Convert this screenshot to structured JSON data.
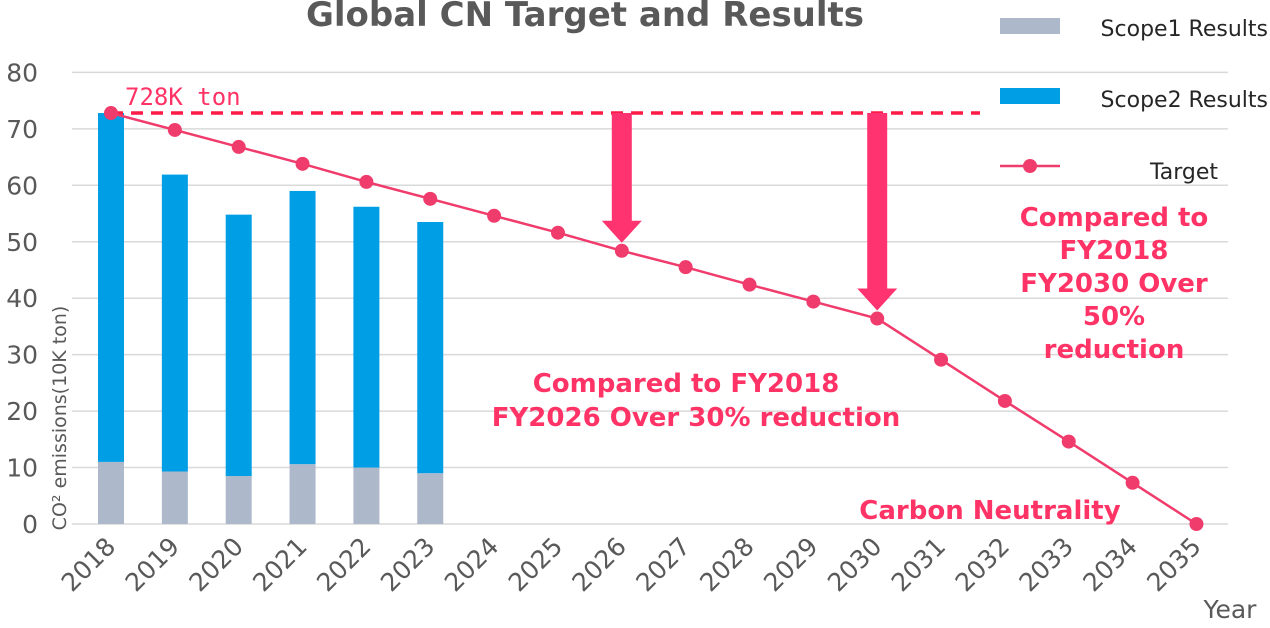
{
  "chart_data": {
    "type": "bar",
    "title": "Global CN Target and Results",
    "ylabel": "CO² emissions(10K ton)",
    "xlabel": "Year",
    "ylim": [
      0,
      80
    ],
    "yticks": [
      "0",
      "10",
      "20",
      "30",
      "40",
      "50",
      "60",
      "70",
      "80"
    ],
    "categories": [
      "2018",
      "2019",
      "2020",
      "2021",
      "2022",
      "2023",
      "2024",
      "2025",
      "2026",
      "2027",
      "2028",
      "2029",
      "2030",
      "2031",
      "2032",
      "2033",
      "2034",
      "2035"
    ],
    "series": [
      {
        "name": "Scope1 Results",
        "kind": "bar",
        "stack": "results",
        "color": "#adb9ca",
        "values": [
          11.0,
          9.3,
          8.5,
          10.6,
          10.0,
          9.0,
          null,
          null,
          null,
          null,
          null,
          null,
          null,
          null,
          null,
          null,
          null,
          null
        ]
      },
      {
        "name": "Scope2 Results",
        "kind": "bar",
        "stack": "results",
        "color": "#009ee5",
        "values": [
          61.8,
          52.6,
          46.3,
          48.4,
          46.2,
          44.5,
          null,
          null,
          null,
          null,
          null,
          null,
          null,
          null,
          null,
          null,
          null,
          null
        ]
      },
      {
        "name": "Target",
        "kind": "line",
        "color": "#f03c6c",
        "values": [
          72.8,
          69.8,
          66.8,
          63.8,
          60.6,
          57.6,
          54.6,
          51.6,
          48.4,
          45.5,
          42.4,
          39.4,
          36.4,
          29.1,
          21.8,
          14.6,
          7.3,
          0
        ]
      }
    ],
    "baseline": {
      "value": 72.8,
      "label": "728K ton"
    },
    "annotations": [
      {
        "text_lines": [
          "Compared to FY2018",
          "FY2026 Over 30% reduction"
        ]
      },
      {
        "text_lines": [
          "Compared to",
          "FY2018",
          "FY2030 Over",
          "50%",
          "reduction"
        ]
      },
      {
        "text_lines": [
          "Carbon Neutrality"
        ]
      }
    ],
    "arrow_targets": [
      "2026",
      "2030"
    ],
    "grid": true,
    "legend_position": "right"
  }
}
